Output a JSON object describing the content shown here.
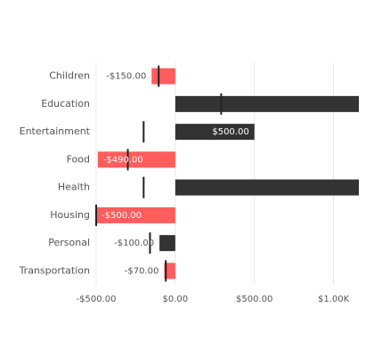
{
  "chart_data": {
    "type": "bar",
    "orientation": "horizontal",
    "categories": [
      "Children",
      "Education",
      "Entertainment",
      "Food",
      "Health",
      "Housing",
      "Personal",
      "Transportation"
    ],
    "values": [
      -150,
      1250,
      500,
      -490,
      1250,
      -500,
      -100,
      -70
    ],
    "value_labels": [
      "-$150.00",
      null,
      "$500.00",
      "-$490.00",
      null,
      "-$500.00",
      "-$100.00",
      "-$70.00"
    ],
    "colors": [
      "#ff5c5c",
      "#333333",
      "#333333",
      "#ff5c5c",
      "#333333",
      "#ff5c5c",
      "#333333",
      "#ff5c5c"
    ],
    "targets": [
      -105,
      290,
      -200,
      -300,
      -200,
      -500,
      -160,
      -60
    ],
    "target_color": "#222222",
    "xlim": [
      -500,
      1160
    ],
    "xticks": [
      {
        "value": -500,
        "label": "-$500.00"
      },
      {
        "value": 0,
        "label": "$0.00"
      },
      {
        "value": 500,
        "label": "$500.00"
      },
      {
        "value": 1000,
        "label": "$1.00K"
      }
    ],
    "grid": true
  }
}
